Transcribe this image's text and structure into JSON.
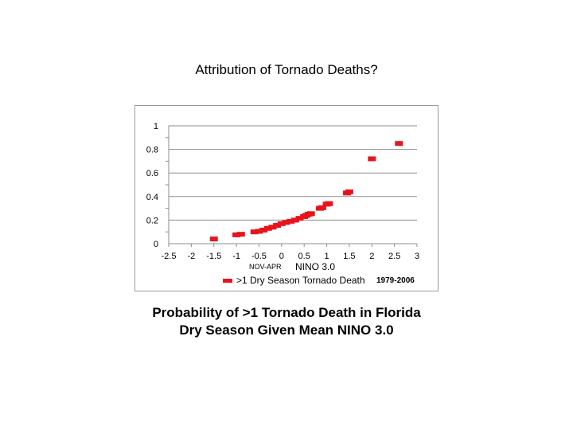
{
  "page": {
    "title": "Attribution of Tornado Deaths?",
    "caption_line1": "Probability of >1 Tornado Death in Florida",
    "caption_line2": "Dry Season Given Mean NINO 3.0"
  },
  "colors": {
    "series": "#e8141b",
    "gridline": "#8c8c8c",
    "axis_text": "#000000"
  },
  "chart_data": {
    "type": "scatter",
    "title": "",
    "xlabel": "NINO 3.0",
    "xlabel_prefix": "NOV-APR",
    "ylabel": "",
    "xlim": [
      -2.5,
      3
    ],
    "ylim": [
      0,
      1
    ],
    "x_ticks": [
      -2.5,
      -2,
      -1.5,
      -1,
      -0.5,
      0,
      0.5,
      1,
      1.5,
      2,
      2.5,
      3
    ],
    "x_tick_labels": [
      "-2.5",
      "-2",
      "-1.5",
      "-1",
      "-0.5",
      "0",
      "0.5",
      "1",
      "1.5",
      "2",
      "2.5",
      "3"
    ],
    "y_ticks": [
      0,
      0.2,
      0.4,
      0.6,
      0.8,
      1
    ],
    "y_tick_labels": [
      "0",
      "0.2",
      "0.4",
      "0.6",
      "0.8",
      "1"
    ],
    "grid": "horizontal",
    "legend_position": "bottom",
    "annotation": "1979-2006",
    "series": [
      {
        "name": ">1 Dry Season Tornado Death",
        "x": [
          -1.5,
          -1.0,
          -0.9,
          -0.6,
          -0.5,
          -0.4,
          -0.3,
          -0.2,
          -0.1,
          0.0,
          0.1,
          0.2,
          0.3,
          0.4,
          0.5,
          0.55,
          0.6,
          0.65,
          0.85,
          0.9,
          1.0,
          1.05,
          1.45,
          1.5,
          2.0,
          2.6
        ],
        "y": [
          0.04,
          0.075,
          0.08,
          0.1,
          0.105,
          0.115,
          0.13,
          0.14,
          0.155,
          0.17,
          0.18,
          0.19,
          0.2,
          0.215,
          0.23,
          0.24,
          0.25,
          0.255,
          0.3,
          0.305,
          0.335,
          0.34,
          0.43,
          0.44,
          0.72,
          0.85
        ]
      }
    ]
  }
}
